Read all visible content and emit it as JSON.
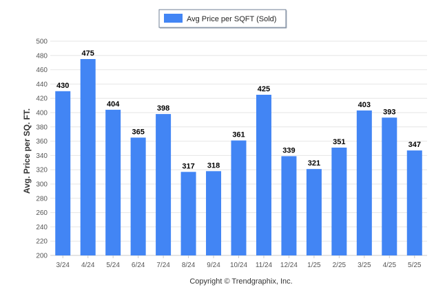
{
  "chart_data": {
    "type": "bar",
    "categories": [
      "3/24",
      "4/24",
      "5/24",
      "6/24",
      "7/24",
      "8/24",
      "9/24",
      "10/24",
      "11/24",
      "12/24",
      "1/25",
      "2/25",
      "3/25",
      "4/25",
      "5/25"
    ],
    "series": [
      {
        "name": "Avg Price per SQFT (Sold)",
        "values": [
          430,
          475,
          404,
          365,
          398,
          317,
          318,
          361,
          425,
          339,
          321,
          351,
          403,
          393,
          347
        ],
        "color": "#4285f4"
      }
    ],
    "title": "",
    "xlabel": "",
    "ylabel": "Avg. Price per SQ. FT.",
    "ylim": [
      200,
      500
    ],
    "yticks": [
      200,
      220,
      240,
      260,
      280,
      300,
      320,
      340,
      360,
      380,
      400,
      420,
      440,
      460,
      480,
      500
    ],
    "grid": true,
    "legend_position": "top-center",
    "data_labels": true
  },
  "footer": {
    "copyright": "Copyright © Trendgraphix, Inc."
  }
}
